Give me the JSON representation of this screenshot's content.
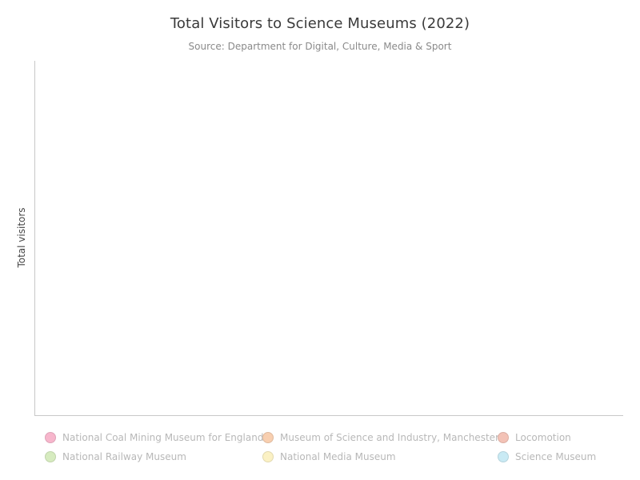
{
  "chart_data": {
    "type": "bar",
    "title": "Total Visitors to Science Museums (2022)",
    "subtitle": "Source: Department for Digital, Culture, Media & Sport",
    "xlabel": "",
    "ylabel": "Total visitors",
    "categories": [],
    "series": [
      {
        "name": "National Coal Mining Museum for England",
        "color": "#f7b6cc",
        "values": []
      },
      {
        "name": "Museum of Science and Industry, Manchester",
        "color": "#f8cfb0",
        "values": []
      },
      {
        "name": "Locomotion",
        "color": "#f3c2b6",
        "values": []
      },
      {
        "name": "National Railway Museum",
        "color": "#d6ebbf",
        "values": []
      },
      {
        "name": "National Media Museum",
        "color": "#fbf1c4",
        "values": []
      },
      {
        "name": "Science Museum",
        "color": "#c9eaf4",
        "values": []
      }
    ],
    "grid": false,
    "legend_position": "bottom"
  }
}
